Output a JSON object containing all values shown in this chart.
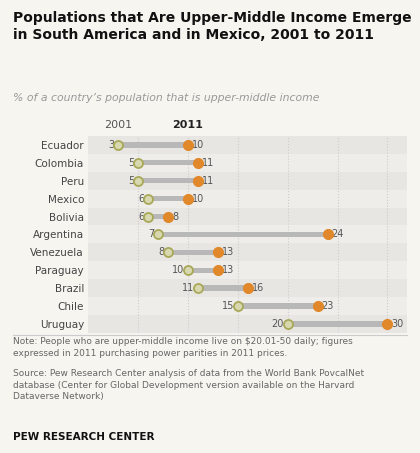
{
  "title": "Populations that Are Upper-Middle Income Emerge\nin South America and in Mexico, 2001 to 2011",
  "subtitle": "% of a country’s population that is upper-middle income",
  "countries": [
    "Ecuador",
    "Colombia",
    "Peru",
    "Mexico",
    "Bolivia",
    "Argentina",
    "Venezuela",
    "Paraguay",
    "Brazil",
    "Chile",
    "Uruguay"
  ],
  "val_2001": [
    3,
    5,
    5,
    6,
    6,
    7,
    8,
    10,
    11,
    15,
    20
  ],
  "val_2011": [
    10,
    11,
    11,
    10,
    8,
    24,
    13,
    13,
    16,
    23,
    30
  ],
  "dot_2001_face": "#d8d8b0",
  "dot_2001_edge": "#a8a858",
  "dot_2011_color": "#e0882a",
  "note_text": "Note: People who are upper-middle income live on $20.01-50 daily; figures\nexpressed in 2011 purchasing power parities in 2011 prices.",
  "source_text": "Source: Pew Research Center analysis of data from the World Bank PovcalNet\ndatabase (Center for Global Development version available on the Harvard\nDataverse Network)",
  "brand_text": "PEW RESEARCH CENTER",
  "xlim": [
    0,
    32
  ],
  "bg_color": "#f7f5f0",
  "row_color_even": "#e8e6e2",
  "row_color_odd": "#efede9"
}
